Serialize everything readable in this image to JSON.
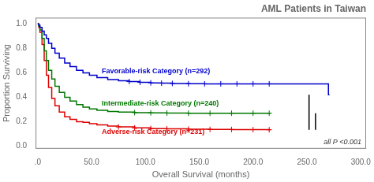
{
  "chart_data": {
    "type": "step",
    "title": "AML Patients in Taiwan",
    "xlabel": "Overall Survival (months)",
    "ylabel": "Proportion Surviving",
    "xlim": [
      -2,
      305
    ],
    "ylim": [
      -0.02,
      1.05
    ],
    "xticks": [
      {
        "value": 0,
        "label": ".0"
      },
      {
        "value": 50,
        "label": "50.0"
      },
      {
        "value": 100,
        "label": "100.0"
      },
      {
        "value": 150,
        "label": "150.0"
      },
      {
        "value": 200,
        "label": "200.0"
      },
      {
        "value": 250,
        "label": "250.0"
      },
      {
        "value": 300,
        "label": "300.0"
      }
    ],
    "yticks": [
      {
        "value": 0.0,
        "label": "0.0"
      },
      0.2,
      0.4,
      0.6,
      0.8,
      {
        "value": 1.0,
        "label": "1.0"
      }
    ],
    "grid": false,
    "annotation": "all P <0.001",
    "series": [
      {
        "name": "Favorable-risk Category (n=292)",
        "color": "#0000CC",
        "marker": "+",
        "x": [
          0,
          1,
          2,
          4,
          6,
          8,
          10,
          13,
          16,
          20,
          25,
          30,
          36,
          42,
          48,
          55,
          65,
          75,
          85,
          95,
          105,
          115,
          125,
          140,
          155,
          170,
          185,
          200,
          215,
          220,
          270,
          271
        ],
        "values": [
          1.0,
          0.99,
          0.97,
          0.94,
          0.91,
          0.88,
          0.84,
          0.8,
          0.76,
          0.72,
          0.68,
          0.65,
          0.62,
          0.6,
          0.58,
          0.56,
          0.545,
          0.535,
          0.528,
          0.522,
          0.518,
          0.515,
          0.513,
          0.511,
          0.51,
          0.51,
          0.51,
          0.51,
          0.51,
          0.51,
          0.42,
          0.42
        ],
        "censor_x": [
          85,
          95,
          105,
          115,
          125,
          140,
          155,
          170,
          185,
          200,
          215
        ],
        "censor_values": [
          0.528,
          0.522,
          0.518,
          0.515,
          0.513,
          0.511,
          0.51,
          0.51,
          0.51,
          0.51,
          0.51
        ]
      },
      {
        "name": "Intermediate-risk Category (n=240)",
        "color": "#007700",
        "marker": "+",
        "x": [
          0,
          1,
          2,
          4,
          6,
          8,
          10,
          13,
          16,
          20,
          25,
          30,
          36,
          42,
          48,
          55,
          65,
          75,
          90,
          105,
          120,
          140,
          160,
          180,
          200,
          215,
          216
        ],
        "values": [
          1.0,
          0.98,
          0.95,
          0.88,
          0.78,
          0.7,
          0.62,
          0.55,
          0.49,
          0.44,
          0.4,
          0.37,
          0.34,
          0.32,
          0.305,
          0.293,
          0.284,
          0.279,
          0.275,
          0.273,
          0.271,
          0.27,
          0.27,
          0.27,
          0.27,
          0.27,
          0.27
        ],
        "censor_x": [
          90,
          105,
          120,
          140,
          160,
          180,
          200,
          215
        ],
        "censor_values": [
          0.275,
          0.273,
          0.271,
          0.27,
          0.27,
          0.27,
          0.27,
          0.27
        ]
      },
      {
        "name": "Adverse-risk Category (n=231)",
        "color": "#DD0000",
        "marker": "+",
        "x": [
          0,
          1,
          2,
          4,
          6,
          8,
          10,
          13,
          16,
          20,
          25,
          30,
          36,
          42,
          48,
          55,
          65,
          75,
          90,
          105,
          120,
          140,
          160,
          180,
          200,
          215,
          216
        ],
        "values": [
          1.0,
          0.97,
          0.93,
          0.83,
          0.7,
          0.58,
          0.48,
          0.39,
          0.33,
          0.28,
          0.24,
          0.22,
          0.2,
          0.195,
          0.185,
          0.175,
          0.165,
          0.158,
          0.15,
          0.145,
          0.142,
          0.14,
          0.138,
          0.137,
          0.136,
          0.135,
          0.135
        ],
        "censor_x": [
          75,
          90,
          105,
          120,
          140,
          160,
          180,
          200,
          215
        ],
        "censor_values": [
          0.158,
          0.15,
          0.145,
          0.142,
          0.14,
          0.138,
          0.137,
          0.136,
          0.135
        ]
      }
    ],
    "brackets": [
      {
        "x": 252,
        "values": [
          0.135,
          0.42
        ],
        "color": "#000000"
      },
      {
        "x": 258,
        "values": [
          0.135,
          0.27
        ],
        "color": "#000000"
      }
    ]
  }
}
